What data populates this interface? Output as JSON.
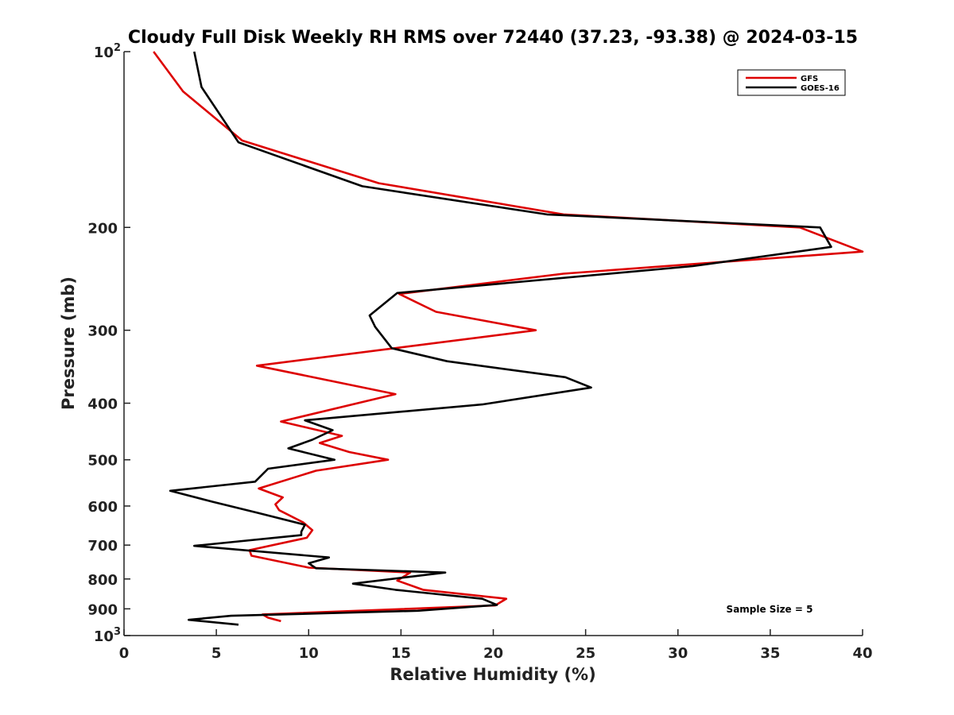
{
  "chart_data": {
    "type": "line",
    "title": "Cloudy Full Disk Weekly RH RMS over 72440 (37.23, -93.38) @ 2024-03-15",
    "xlabel": "Relative Humidity (%)",
    "ylabel": "Pressure (mb)",
    "xlim": [
      0,
      40
    ],
    "ylim": [
      100,
      1000
    ],
    "y_scale": "log",
    "y_reversed": true,
    "grid": false,
    "legend_position": "top-right",
    "x_ticks": [
      0,
      5,
      10,
      15,
      20,
      25,
      30,
      35,
      40
    ],
    "x_tick_labels": [
      "0",
      "5",
      "10",
      "15",
      "20",
      "25",
      "30",
      "35",
      "40"
    ],
    "y_ticks": [
      100,
      200,
      300,
      400,
      500,
      600,
      700,
      800,
      900,
      1000
    ],
    "y_tick_labels": [
      {
        "base": "10",
        "exp": "2"
      },
      {
        "base": "200",
        "exp": ""
      },
      {
        "base": "300",
        "exp": ""
      },
      {
        "base": "400",
        "exp": ""
      },
      {
        "base": "500",
        "exp": ""
      },
      {
        "base": "600",
        "exp": ""
      },
      {
        "base": "700",
        "exp": ""
      },
      {
        "base": "800",
        "exp": ""
      },
      {
        "base": "900",
        "exp": ""
      },
      {
        "base": "10",
        "exp": "3"
      }
    ],
    "annotation": "Sample Size = 5",
    "series": [
      {
        "name": "GFS",
        "color": "#dd0000",
        "points": [
          [
            1.6,
            100
          ],
          [
            3.2,
            117
          ],
          [
            6.4,
            142
          ],
          [
            13.8,
            168
          ],
          [
            23.8,
            190
          ],
          [
            36.6,
            200
          ],
          [
            40.0,
            220
          ],
          [
            23.8,
            240
          ],
          [
            14.9,
            260
          ],
          [
            16.9,
            279
          ],
          [
            22.3,
            300
          ],
          [
            7.2,
            345
          ],
          [
            14.7,
            386
          ],
          [
            8.5,
            430
          ],
          [
            11.8,
            455
          ],
          [
            10.6,
            468
          ],
          [
            12.2,
            485
          ],
          [
            14.3,
            500
          ],
          [
            10.4,
            522
          ],
          [
            7.3,
            560
          ],
          [
            8.6,
            580
          ],
          [
            8.2,
            596
          ],
          [
            8.4,
            610
          ],
          [
            9.7,
            640
          ],
          [
            10.2,
            660
          ],
          [
            9.9,
            680
          ],
          [
            6.8,
            714
          ],
          [
            6.9,
            730
          ],
          [
            10.0,
            765
          ],
          [
            15.5,
            780
          ],
          [
            14.8,
            805
          ],
          [
            16.2,
            835
          ],
          [
            20.7,
            865
          ],
          [
            20.1,
            888
          ],
          [
            7.5,
            920
          ],
          [
            7.8,
            932
          ],
          [
            8.5,
            945
          ]
        ]
      },
      {
        "name": "GOES-16",
        "color": "#000000",
        "points": [
          [
            3.8,
            100
          ],
          [
            4.2,
            115
          ],
          [
            6.2,
            143
          ],
          [
            12.9,
            170
          ],
          [
            22.9,
            190
          ],
          [
            37.7,
            200
          ],
          [
            38.3,
            216
          ],
          [
            30.8,
            233
          ],
          [
            14.8,
            259
          ],
          [
            13.3,
            283
          ],
          [
            13.6,
            296
          ],
          [
            14.5,
            322
          ],
          [
            17.5,
            339
          ],
          [
            23.9,
            361
          ],
          [
            25.3,
            376
          ],
          [
            19.4,
            402
          ],
          [
            9.8,
            428
          ],
          [
            11.3,
            445
          ],
          [
            10.2,
            462
          ],
          [
            8.9,
            478
          ],
          [
            11.4,
            500
          ],
          [
            7.8,
            518
          ],
          [
            7.1,
            545
          ],
          [
            2.5,
            565
          ],
          [
            4.8,
            590
          ],
          [
            7.3,
            617
          ],
          [
            9.8,
            646
          ],
          [
            9.6,
            664
          ],
          [
            9.6,
            673
          ],
          [
            3.8,
            702
          ],
          [
            11.1,
            735
          ],
          [
            10.0,
            752
          ],
          [
            10.4,
            767
          ],
          [
            17.4,
            780
          ],
          [
            12.4,
            815
          ],
          [
            14.7,
            835
          ],
          [
            19.4,
            865
          ],
          [
            20.2,
            886
          ],
          [
            15.9,
            907
          ],
          [
            5.8,
            925
          ],
          [
            3.5,
            940
          ],
          [
            6.2,
            958
          ]
        ]
      }
    ]
  }
}
